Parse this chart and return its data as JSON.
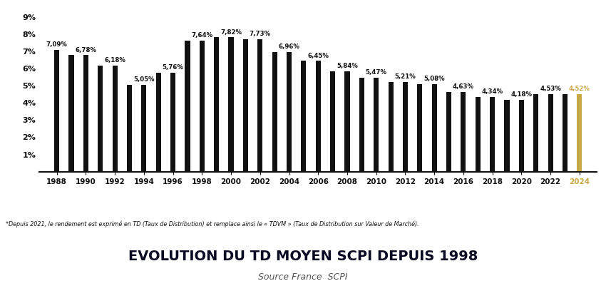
{
  "years": [
    1988,
    1989,
    1990,
    1991,
    1992,
    1993,
    1994,
    1995,
    1996,
    1997,
    1998,
    1999,
    2000,
    2001,
    2002,
    2003,
    2004,
    2005,
    2006,
    2007,
    2008,
    2009,
    2010,
    2011,
    2012,
    2013,
    2014,
    2015,
    2016,
    2017,
    2018,
    2019,
    2020,
    2021,
    2022,
    2023,
    2024
  ],
  "values": [
    7.09,
    6.78,
    6.78,
    6.18,
    6.18,
    5.05,
    5.05,
    5.76,
    5.76,
    7.64,
    7.64,
    7.82,
    7.82,
    7.73,
    7.73,
    6.96,
    6.96,
    6.45,
    6.45,
    5.84,
    5.84,
    5.47,
    5.47,
    5.21,
    5.21,
    5.08,
    5.08,
    4.63,
    4.63,
    4.34,
    4.34,
    4.18,
    4.18,
    4.53,
    4.53,
    4.52,
    4.52
  ],
  "labels": {
    "1988": "7,09%",
    "1990": "6,78%",
    "1992": "6,18%",
    "1994": "5,05%",
    "1996": "5,76%",
    "1998": "7,64%",
    "2000": "7,82%",
    "2002": "7,73%",
    "2004": "6,96%",
    "2006": "6,45%",
    "2008": "5,84%",
    "2010": "5,47%",
    "2012": "5,21%",
    "2014": "5,08%",
    "2016": "4,63%",
    "2018": "4,34%",
    "2020": "4,18%",
    "2022": "4,53%",
    "2024": "4,52%"
  },
  "bar_color": "#111111",
  "highlight_color": "#C8A94A",
  "background_color": "#ffffff",
  "title": "EVOLUTION DU TD MOYEN SCPI DEPUIS 1998",
  "subtitle": "Source France  SCPI",
  "footnote": "*Depuis 2021, le rendement est exprimé en TD (Taux de Distribution) et remplace ainsi le « TDVM » (Taux de Distribution sur Valeur de Marché).",
  "ylim": [
    0,
    9.5
  ],
  "yticks": [
    1,
    2,
    3,
    4,
    5,
    6,
    7,
    8,
    9
  ],
  "xtick_years": [
    1988,
    1990,
    1992,
    1994,
    1996,
    1998,
    2000,
    2002,
    2004,
    2006,
    2008,
    2010,
    2012,
    2014,
    2016,
    2018,
    2020,
    2022,
    2024
  ],
  "bar_width": 0.35
}
